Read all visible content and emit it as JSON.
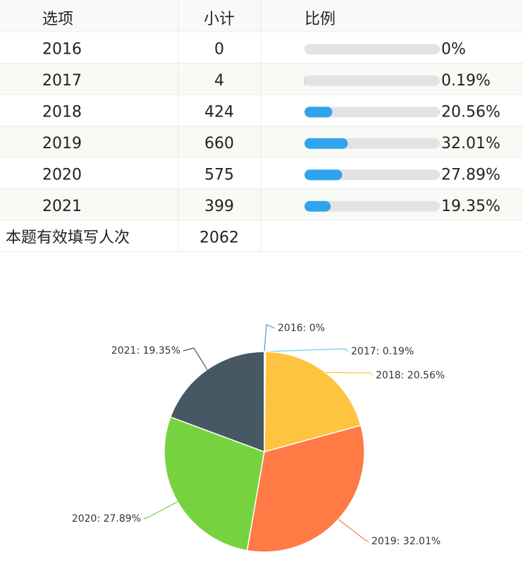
{
  "table": {
    "header": [
      "选项",
      "小计",
      "比例"
    ],
    "rows": [
      {
        "option": "2016",
        "count": 0,
        "percent": "0%"
      },
      {
        "option": "2017",
        "count": 4,
        "percent": "0.19%"
      },
      {
        "option": "2018",
        "count": 424,
        "percent": "20.56%"
      },
      {
        "option": "2019",
        "count": 660,
        "percent": "32.01%"
      },
      {
        "option": "2020",
        "count": 575,
        "percent": "27.89%"
      },
      {
        "option": "2021",
        "count": 399,
        "percent": "19.35%"
      }
    ],
    "total_label": "本题有效填写人次",
    "total": 2062
  },
  "chart_data": {
    "type": "pie",
    "categories": [
      "2016",
      "2017",
      "2018",
      "2019",
      "2020",
      "2021"
    ],
    "values": [
      0,
      0.19,
      20.56,
      32.01,
      27.89,
      19.35
    ],
    "value_labels": [
      "2016: 0%",
      "2017: 0.19%",
      "2018: 20.56%",
      "2019: 32.01%",
      "2020: 27.89%",
      "2021: 19.35%"
    ],
    "colors": [
      "#3aa0da",
      "#5fd0e0",
      "#fec43f",
      "#ff7a45",
      "#77d23f",
      "#455863"
    ]
  }
}
